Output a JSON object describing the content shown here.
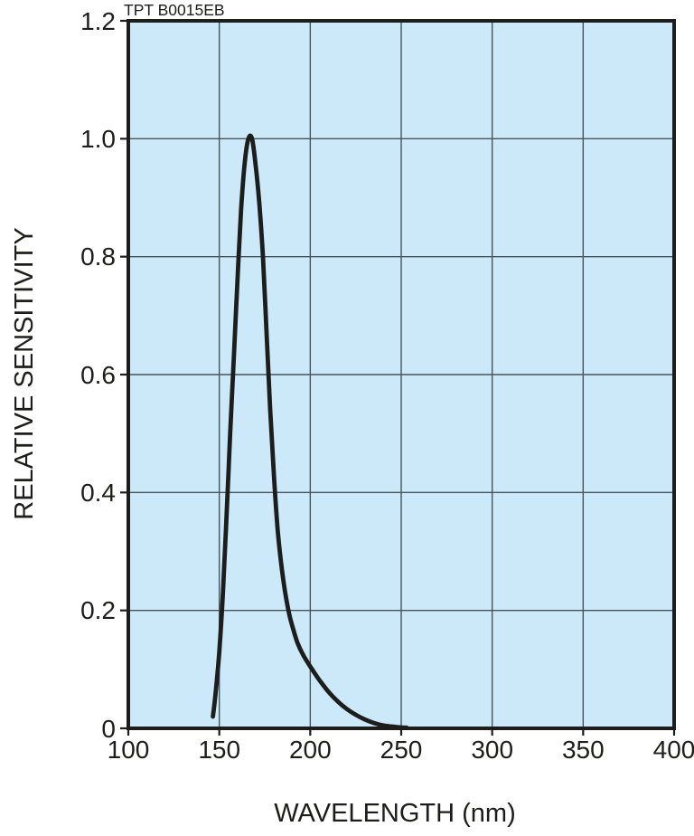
{
  "header": {
    "part_number": "TPT B0015EB"
  },
  "chart_data": {
    "type": "line",
    "title": "TPT B0015EB",
    "xlabel": "WAVELENGTH (nm)",
    "ylabel": "RELATIVE SENSITIVITY",
    "xlim": [
      100,
      400
    ],
    "ylim": [
      0,
      1.2
    ],
    "x_ticks": [
      100,
      150,
      200,
      250,
      300,
      350,
      400
    ],
    "y_ticks": [
      0,
      0.2,
      0.4,
      0.6,
      0.8,
      1.0,
      1.2
    ],
    "x_tick_labels": [
      "100",
      "150",
      "200",
      "250",
      "300",
      "350",
      "400"
    ],
    "y_tick_labels": [
      "0",
      "0.2",
      "0.4",
      "0.6",
      "0.8",
      "1.0",
      "1.2"
    ],
    "grid": true,
    "legend": "none",
    "plot_bg_color": "#cbe9f8",
    "grid_color": "#47545e",
    "border_color": "#1d1d1b",
    "line_color": "#1d1d1b",
    "series": [
      {
        "name": "relative-sensitivity",
        "peak_wavelength_nm": 167,
        "peak_value": 1.0,
        "points": [
          [
            146.5,
            0.02
          ],
          [
            148,
            0.06
          ],
          [
            150,
            0.13
          ],
          [
            152,
            0.23
          ],
          [
            154,
            0.36
          ],
          [
            156,
            0.5
          ],
          [
            158,
            0.63
          ],
          [
            160,
            0.76
          ],
          [
            162,
            0.88
          ],
          [
            164,
            0.96
          ],
          [
            166,
            1.0
          ],
          [
            168,
            1.0
          ],
          [
            170,
            0.955
          ],
          [
            172,
            0.89
          ],
          [
            174,
            0.8
          ],
          [
            176,
            0.67
          ],
          [
            178,
            0.54
          ],
          [
            180,
            0.43
          ],
          [
            182,
            0.34
          ],
          [
            184,
            0.28
          ],
          [
            186,
            0.235
          ],
          [
            188,
            0.2
          ],
          [
            190,
            0.175
          ],
          [
            193,
            0.145
          ],
          [
            196,
            0.125
          ],
          [
            200,
            0.105
          ],
          [
            205,
            0.082
          ],
          [
            210,
            0.062
          ],
          [
            215,
            0.046
          ],
          [
            220,
            0.033
          ],
          [
            225,
            0.023
          ],
          [
            230,
            0.015
          ],
          [
            235,
            0.009
          ],
          [
            240,
            0.005
          ],
          [
            245,
            0.003
          ],
          [
            250,
            0.0015
          ],
          [
            253,
            0.001
          ]
        ]
      }
    ]
  }
}
